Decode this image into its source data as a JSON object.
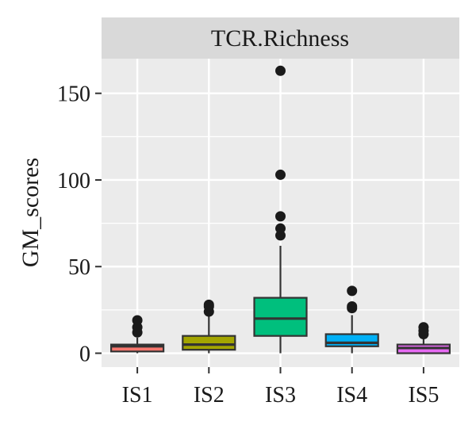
{
  "chart_data": {
    "type": "box",
    "facet_label": "TCR.Richness",
    "xlabel": "",
    "ylabel": "GM_scores",
    "ylim": [
      -8,
      170
    ],
    "yticks": [
      0,
      50,
      100,
      150
    ],
    "grid": true,
    "categories": [
      "IS1",
      "IS2",
      "IS3",
      "IS4",
      "IS5"
    ],
    "boxes": [
      {
        "name": "IS1",
        "color": "#F8766D",
        "min": 0,
        "q1": 1,
        "median": 4,
        "q3": 5,
        "max": 9,
        "outliers": [
          12,
          15,
          19
        ]
      },
      {
        "name": "IS2",
        "color": "#A3A500",
        "min": 0,
        "q1": 2,
        "median": 5,
        "q3": 10,
        "max": 22,
        "outliers": [
          24,
          27,
          28
        ]
      },
      {
        "name": "IS3",
        "color": "#00BF7D",
        "min": 0,
        "q1": 10,
        "median": 20,
        "q3": 32,
        "max": 62,
        "outliers": [
          68,
          72,
          79,
          103,
          163
        ]
      },
      {
        "name": "IS4",
        "color": "#00B0F6",
        "min": 0,
        "q1": 4,
        "median": 6,
        "q3": 11,
        "max": 22,
        "outliers": [
          26,
          27,
          36
        ]
      },
      {
        "name": "IS5",
        "color": "#E76BF3",
        "min": 0,
        "q1": 0,
        "median": 3,
        "q3": 5,
        "max": 9,
        "outliers": [
          11,
          13,
          15
        ]
      }
    ]
  }
}
